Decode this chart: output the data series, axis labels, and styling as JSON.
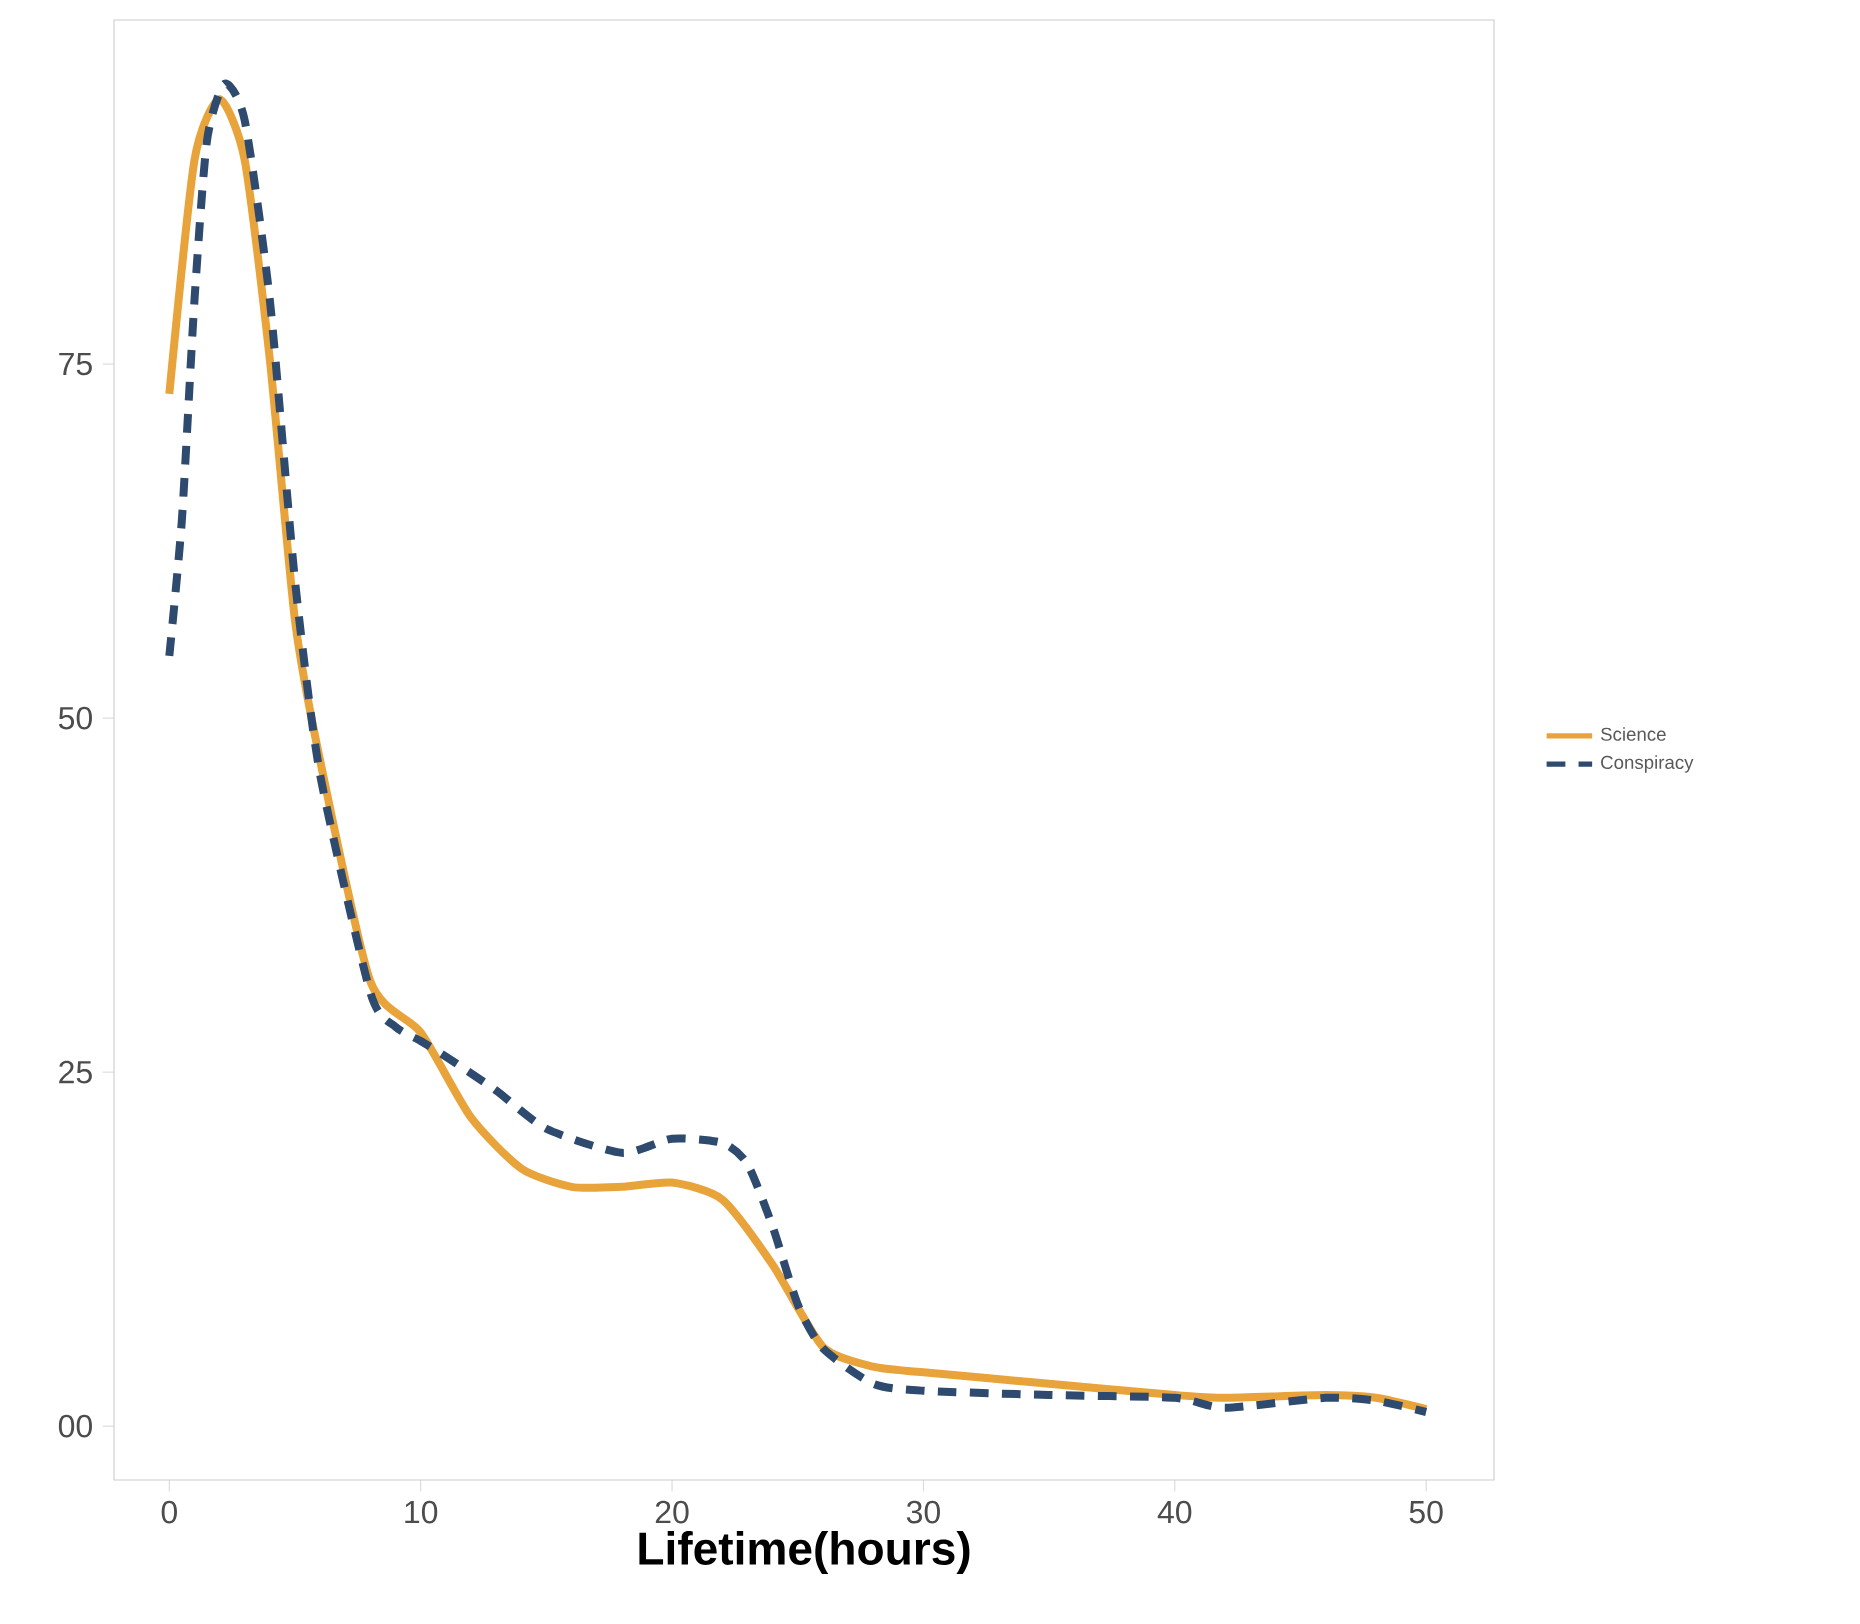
{
  "chart_data": {
    "type": "line",
    "xlabel": "Lifetime(hours)",
    "xlim": [
      -2.2,
      52.7
    ],
    "ylim": [
      -3.8,
      99.3
    ],
    "xticks": [
      0,
      10,
      20,
      30,
      40,
      50
    ],
    "yticks": [
      {
        "value": 0,
        "label": "00"
      },
      25,
      50,
      75
    ],
    "grid": false,
    "legend": "right",
    "marker": "none",
    "series": [
      {
        "name": "Science",
        "color": "#e8a33a",
        "line_style": "solid",
        "x": [
          0,
          1,
          2,
          3,
          4,
          5,
          6,
          8,
          10,
          12,
          14,
          16,
          18,
          20,
          22,
          24,
          26,
          28,
          30,
          35,
          40,
          42,
          46,
          48,
          50
        ],
        "values": [
          72.9,
          89.4,
          93.7,
          89.4,
          75.3,
          56.9,
          47,
          31.4,
          27.8,
          21.8,
          18.2,
          16.9,
          16.9,
          17.2,
          16,
          11.4,
          5.6,
          4.2,
          3.8,
          3,
          2.2,
          2,
          2.2,
          2,
          1.2
        ]
      },
      {
        "name": "Conspiracy",
        "color": "#2e4a6e",
        "line_style": "dashed",
        "x": [
          0,
          0.5,
          1,
          1.5,
          2.2,
          3,
          4,
          5,
          6,
          8,
          9,
          10,
          11,
          13,
          15,
          18,
          20,
          22,
          23,
          24,
          25,
          26,
          28,
          30,
          35,
          40,
          42,
          46,
          48,
          50
        ],
        "values": [
          54.4,
          64,
          79.5,
          90.8,
          94.8,
          92.2,
          79.5,
          59.7,
          46,
          30.6,
          28.2,
          27.2,
          26.1,
          23.7,
          21,
          19.3,
          20.3,
          20,
          18.5,
          14.1,
          8.6,
          5.5,
          3,
          2.5,
          2.2,
          2,
          1.3,
          2,
          1.8,
          1
        ]
      }
    ]
  }
}
